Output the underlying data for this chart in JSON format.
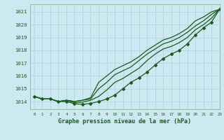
{
  "title": "Graphe pression niveau de la mer (hPa)",
  "background_color": "#cce8f0",
  "grid_color": "#b0d0dc",
  "line_color": "#1a5c1a",
  "spine_color": "#7aaa88",
  "xlim": [
    -0.5,
    23
  ],
  "ylim": [
    1013.4,
    1021.6
  ],
  "yticks": [
    1014,
    1015,
    1016,
    1017,
    1018,
    1019,
    1020,
    1021
  ],
  "xticks": [
    0,
    1,
    2,
    3,
    4,
    5,
    6,
    7,
    8,
    9,
    10,
    11,
    12,
    13,
    14,
    15,
    16,
    17,
    18,
    19,
    20,
    21,
    22,
    23
  ],
  "series": {
    "line_top": [
      1014.4,
      1014.2,
      1014.2,
      1014.0,
      1014.1,
      1014.0,
      1014.1,
      1014.3,
      1015.5,
      1016.0,
      1016.5,
      1016.8,
      1017.1,
      1017.5,
      1018.0,
      1018.4,
      1018.8,
      1019.0,
      1019.3,
      1019.7,
      1020.3,
      1020.6,
      1021.0,
      1021.2
    ],
    "line_mid1": [
      1014.4,
      1014.2,
      1014.2,
      1014.0,
      1014.1,
      1014.0,
      1014.1,
      1014.2,
      1015.0,
      1015.5,
      1016.1,
      1016.4,
      1016.7,
      1017.2,
      1017.7,
      1018.1,
      1018.5,
      1018.7,
      1019.0,
      1019.4,
      1019.9,
      1020.3,
      1020.8,
      1021.2
    ],
    "line_mid2": [
      1014.4,
      1014.2,
      1014.2,
      1014.0,
      1014.1,
      1013.9,
      1013.95,
      1014.1,
      1014.4,
      1014.9,
      1015.5,
      1015.8,
      1016.2,
      1016.6,
      1017.2,
      1017.7,
      1018.1,
      1018.3,
      1018.6,
      1019.0,
      1019.6,
      1020.0,
      1020.5,
      1021.2
    ],
    "line_marked": [
      1014.4,
      1014.2,
      1014.2,
      1014.0,
      1014.0,
      1013.82,
      1013.78,
      1013.85,
      1014.0,
      1014.2,
      1014.5,
      1015.0,
      1015.5,
      1015.85,
      1016.3,
      1016.85,
      1017.35,
      1017.7,
      1018.0,
      1018.5,
      1019.2,
      1019.75,
      1020.2,
      1021.2
    ]
  }
}
